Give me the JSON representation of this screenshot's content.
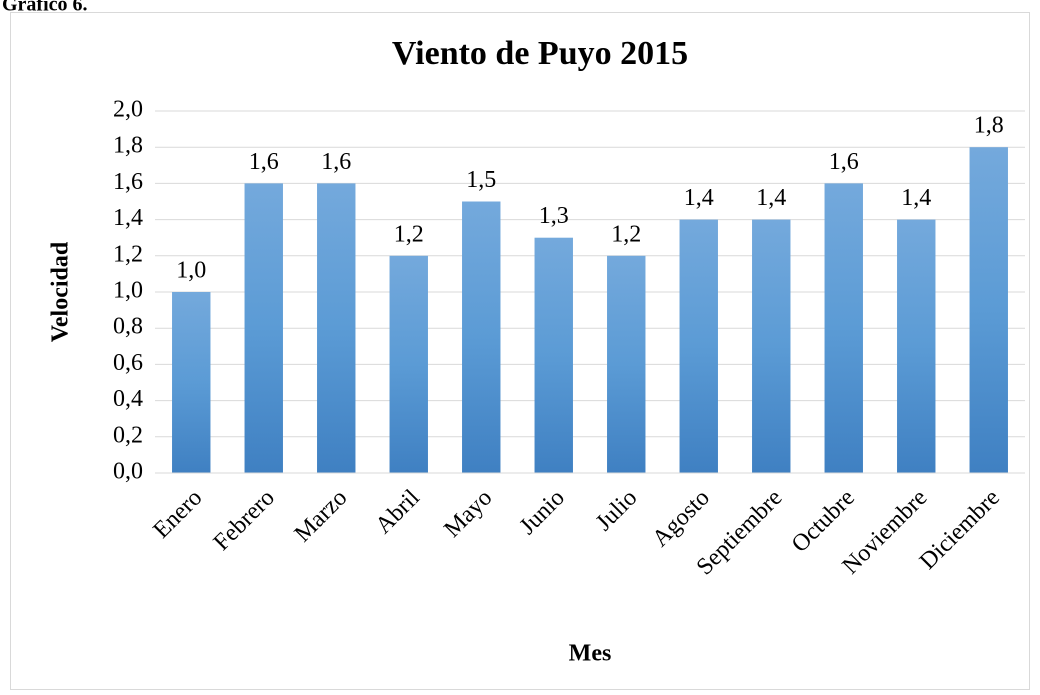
{
  "caption": "Gráfico 6.",
  "chart_data": {
    "type": "bar",
    "title": "Viento de Puyo 2015",
    "x_label": "Mes",
    "y_label": "Velocidad",
    "categories": [
      "Enero",
      "Febrero",
      "Marzo",
      "Abril",
      "Mayo",
      "Junio",
      "Julio",
      "Agosto",
      "Septiembre",
      "Octubre",
      "Noviembre",
      "Diciembre"
    ],
    "values": [
      1.0,
      1.6,
      1.6,
      1.2,
      1.5,
      1.3,
      1.2,
      1.4,
      1.4,
      1.6,
      1.4,
      1.8
    ],
    "value_labels": [
      "1,0",
      "1,6",
      "1,6",
      "1,2",
      "1,5",
      "1,3",
      "1,2",
      "1,4",
      "1,4",
      "1,6",
      "1,4",
      "1,8"
    ],
    "color": "#5b9bd5",
    "ylim": [
      0,
      2
    ],
    "yticks": [
      {
        "value": 0,
        "label": "0,0"
      },
      {
        "value": 0.2,
        "label": "0,2"
      },
      {
        "value": 0.4,
        "label": "0,4"
      },
      {
        "value": 0.6,
        "label": "0,6"
      },
      {
        "value": 0.8,
        "label": "0,8"
      },
      {
        "value": 1.0,
        "label": "1,0"
      },
      {
        "value": 1.2,
        "label": "1,2"
      },
      {
        "value": 1.4,
        "label": "1,4"
      },
      {
        "value": 1.6,
        "label": "1,6"
      },
      {
        "value": 1.8,
        "label": "1,8"
      },
      {
        "value": 2.0,
        "label": "2,0"
      }
    ],
    "grid": true
  }
}
